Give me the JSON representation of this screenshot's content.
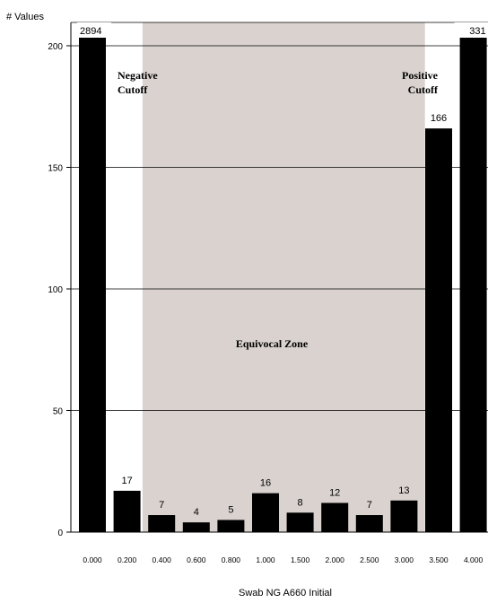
{
  "chart_data": {
    "type": "bar",
    "ylabel": "# Values",
    "xlabel": "Swab NG A660 Initial",
    "ylim": [
      0,
      200
    ],
    "yticks": [
      0,
      50,
      100,
      150,
      200
    ],
    "grid": true,
    "categories": [
      "0.000",
      "0.200",
      "0.400",
      "0.600",
      "0.800",
      "1.000",
      "1.500",
      "2.000",
      "2.500",
      "3.000",
      "3.500",
      "4.000"
    ],
    "values": [
      2894,
      17,
      7,
      4,
      5,
      16,
      8,
      12,
      7,
      13,
      166,
      331
    ],
    "data_labels": [
      "2894",
      "17",
      "7",
      "4",
      "5",
      "16",
      "8",
      "12",
      "7",
      "13",
      "166",
      "331"
    ],
    "shaded_zone": {
      "from_category": "0.400",
      "to_category": "3.000",
      "color": "#d9d2cf"
    },
    "annotations": {
      "negative_cutoff": [
        "Negative",
        "Cutoff"
      ],
      "positive_cutoff": [
        "Positive",
        "Cutoff"
      ],
      "equivocal_zone": "Equivocal Zone"
    },
    "colors": {
      "bar": "#000000",
      "zone": "#d9d2cf",
      "grid": "#000000"
    }
  }
}
